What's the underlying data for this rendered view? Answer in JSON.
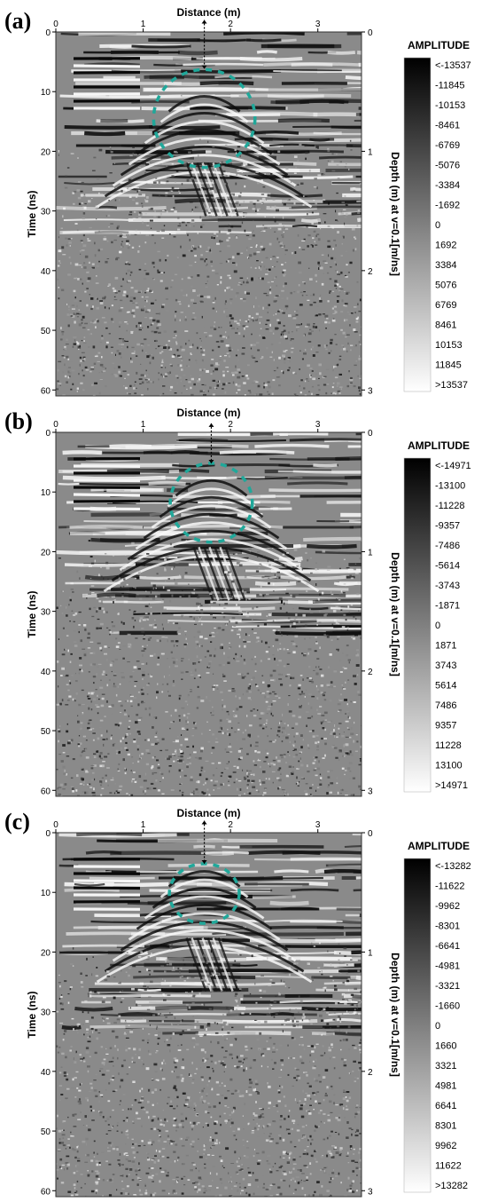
{
  "chart_data": [
    {
      "type": "heatmap",
      "panel_label": "(a)",
      "title": "",
      "xlabel": "Distance (m)",
      "ylabel": "Time (ns)",
      "y2label": "Depth (m) at v=0.1[m/ns]",
      "x_ticks": [
        "0",
        "1",
        "2",
        "3"
      ],
      "y_ticks": [
        "0",
        "10",
        "20",
        "30",
        "40",
        "50",
        "60"
      ],
      "y2_ticks": [
        "0",
        "1",
        "2",
        "3"
      ],
      "xlim": [
        0,
        3.5
      ],
      "ylim": [
        0,
        61
      ],
      "y2lim": [
        0,
        3.05
      ],
      "annotation": {
        "type": "dashed-circle",
        "color": "#20a89a",
        "center_x": 1.7,
        "center_y": 14.5,
        "radius_x": 0.58,
        "radius_y": 8.2,
        "marker_x": 1.7,
        "marker_top": -2.0,
        "marker_bottom": 6.2
      },
      "colorbar_title": "AMPLITUDE",
      "colorbar_labels": [
        "<-13537",
        "-11845",
        "-10153",
        "-8461",
        "-6769",
        "-5076",
        "-3384",
        "-1692",
        "0",
        "1692",
        "3384",
        "5076",
        "6769",
        "8461",
        "10153",
        "11845",
        ">13537"
      ],
      "colormap": [
        "#000000",
        "#ffffff"
      ]
    },
    {
      "type": "heatmap",
      "panel_label": "(b)",
      "title": "",
      "xlabel": "Distance (m)",
      "ylabel": "Time (ns)",
      "y2label": "Depth (m) at v=0.1[m/ns]",
      "x_ticks": [
        "0",
        "1",
        "2",
        "3"
      ],
      "y_ticks": [
        "0",
        "10",
        "20",
        "30",
        "40",
        "50",
        "60"
      ],
      "y2_ticks": [
        "0",
        "1",
        "2",
        "3"
      ],
      "xlim": [
        0,
        3.5
      ],
      "ylim": [
        0,
        61
      ],
      "y2lim": [
        0,
        3.05
      ],
      "annotation": {
        "type": "dashed-circle",
        "color": "#20a89a",
        "center_x": 1.78,
        "center_y": 11.8,
        "radius_x": 0.47,
        "radius_y": 6.6,
        "marker_x": 1.78,
        "marker_top": -1.5,
        "marker_bottom": 5.2
      },
      "colorbar_title": "AMPLITUDE",
      "colorbar_labels": [
        "<-14971",
        "-13100",
        "-11228",
        "-9357",
        "-7486",
        "-5614",
        "-3743",
        "-1871",
        "0",
        "1871",
        "3743",
        "5614",
        "7486",
        "9357",
        "11228",
        "13100",
        ">14971"
      ],
      "colormap": [
        "#000000",
        "#ffffff"
      ]
    },
    {
      "type": "heatmap",
      "panel_label": "(c)",
      "title": "",
      "xlabel": "Distance (m)",
      "ylabel": "Time (ns)",
      "y2label": "Depth (m) at v=0.1[m/ns]",
      "x_ticks": [
        "0",
        "1",
        "2",
        "3"
      ],
      "y_ticks": [
        "0",
        "10",
        "20",
        "30",
        "40",
        "50",
        "60"
      ],
      "y2_ticks": [
        "0",
        "1",
        "2",
        "3"
      ],
      "xlim": [
        0,
        3.5
      ],
      "ylim": [
        0,
        61
      ],
      "y2lim": [
        0,
        3.05
      ],
      "annotation": {
        "type": "dashed-circle",
        "color": "#20a89a",
        "center_x": 1.7,
        "center_y": 10.2,
        "radius_x": 0.4,
        "radius_y": 5.0,
        "marker_x": 1.7,
        "marker_top": -2.0,
        "marker_bottom": 5.2
      },
      "colorbar_title": "AMPLITUDE",
      "colorbar_labels": [
        "<-13282",
        "-11622",
        "-9962",
        "-8301",
        "-6641",
        "-4981",
        "-3321",
        "-1660",
        "0",
        "1660",
        "3321",
        "4981",
        "6641",
        "8301",
        "9962",
        "11622",
        ">13282"
      ],
      "colormap": [
        "#000000",
        "#ffffff"
      ]
    }
  ]
}
